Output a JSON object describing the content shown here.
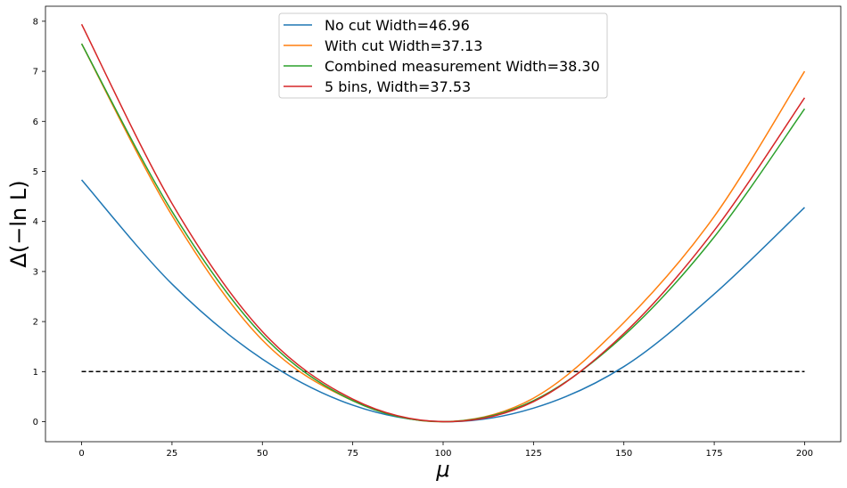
{
  "chart_data": {
    "type": "line",
    "title": "",
    "xlabel": "μ",
    "ylabel": "Δ(−ln L)",
    "xlim": [
      -10,
      210
    ],
    "ylim": [
      -0.4,
      8.3
    ],
    "x_ticks": [
      0,
      25,
      50,
      75,
      100,
      125,
      150,
      175,
      200
    ],
    "y_ticks": [
      0,
      1,
      2,
      3,
      4,
      5,
      6,
      7,
      8
    ],
    "grid": false,
    "legend_position": "top-center",
    "series": [
      {
        "name": "No cut Width=46.96",
        "color": "#1f77b4",
        "x": [
          0,
          25,
          50,
          75,
          100,
          125,
          150,
          175,
          200
        ],
        "y": [
          4.83,
          2.75,
          1.25,
          0.33,
          0.0,
          0.27,
          1.1,
          2.55,
          4.28
        ]
      },
      {
        "name": "With cut Width=37.13",
        "color": "#ff7f0e",
        "x": [
          0,
          25,
          50,
          75,
          100,
          125,
          150,
          175,
          200
        ],
        "y": [
          7.55,
          4.12,
          1.63,
          0.42,
          0.0,
          0.47,
          1.98,
          4.1,
          7.0
        ]
      },
      {
        "name": "Combined measurement Width=38.30",
        "color": "#2ca02c",
        "x": [
          0,
          25,
          50,
          75,
          100,
          125,
          150,
          175,
          200
        ],
        "y": [
          7.55,
          4.2,
          1.73,
          0.42,
          0.0,
          0.42,
          1.72,
          3.69,
          6.25
        ]
      },
      {
        "name": "5 bins, Width=37.53",
        "color": "#d62728",
        "x": [
          0,
          25,
          50,
          75,
          100,
          125,
          150,
          175,
          200
        ],
        "y": [
          7.94,
          4.36,
          1.8,
          0.45,
          0.0,
          0.4,
          1.76,
          3.82,
          6.47
        ]
      }
    ],
    "reference_line": {
      "y": 1,
      "x_range": [
        0,
        200
      ],
      "color": "#000000",
      "style": "dashed"
    }
  }
}
